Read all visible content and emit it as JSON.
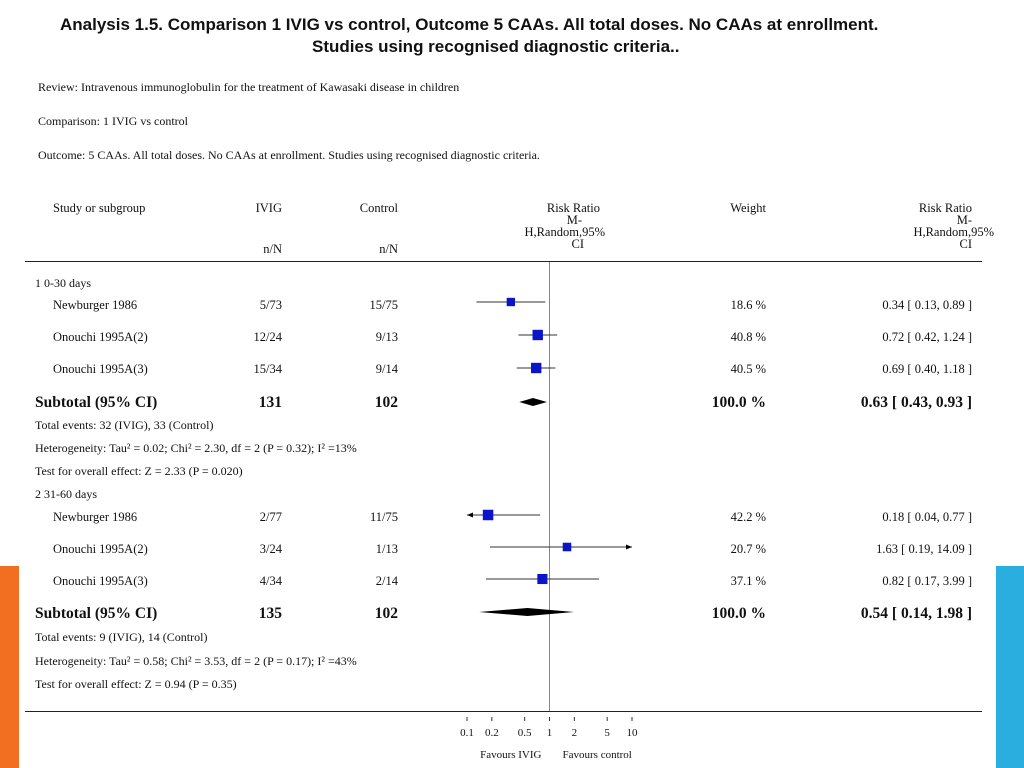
{
  "title": {
    "line1": "Analysis 1.5.   Comparison 1 IVIG vs control, Outcome 5 CAAs. All total doses. No CAAs at enrollment.",
    "line2": "Studies using recognised diagnostic criteria.."
  },
  "meta": {
    "review": "Review:   Intravenous immunoglobulin for the treatment of Kawasaki disease in children",
    "comparison": "Comparison:   1 IVIG vs control",
    "outcome": "Outcome:   5 CAAs. All total doses. No CAAs at enrollment. Studies using recognised diagnostic criteria."
  },
  "headers": {
    "study": "Study or subgroup",
    "ivig": "IVIG",
    "ivig_sub": "n/N",
    "control": "Control",
    "control_sub": "n/N",
    "rr_plot_l1": "Risk Ratio",
    "rr_plot_l2": "M-",
    "rr_plot_l3": "H,Random,95%",
    "rr_plot_l4": "CI",
    "weight": "Weight",
    "rr_l1": "Risk Ratio",
    "rr_l2": "M-",
    "rr_l3": "H,Random,95%",
    "rr_l4": "CI"
  },
  "groups": [
    {
      "label": "1 0-30 days",
      "studies": [
        {
          "name": "Newburger 1986",
          "ivig": "5/73",
          "control": "15/75",
          "weight": "18.6 %",
          "rr": "0.34 [ 0.13, 0.89 ]"
        },
        {
          "name": "Onouchi 1995A(2)",
          "ivig": "12/24",
          "control": "9/13",
          "weight": "40.8 %",
          "rr": "0.72 [ 0.42, 1.24 ]"
        },
        {
          "name": "Onouchi 1995A(3)",
          "ivig": "15/34",
          "control": "9/14",
          "weight": "40.5 %",
          "rr": "0.69 [ 0.40, 1.18 ]"
        }
      ],
      "subtotal": {
        "label": "Subtotal (95% CI)",
        "ivig": "131",
        "control": "102",
        "weight": "100.0 %",
        "rr": "0.63 [ 0.43, 0.93 ]"
      },
      "notes": [
        "Total events: 32 (IVIG), 33 (Control)",
        "Heterogeneity: Tau² = 0.02; Chi² = 2.30, df = 2 (P = 0.32); I² =13%",
        "Test for overall effect: Z = 2.33 (P = 0.020)"
      ]
    },
    {
      "label": "2 31-60 days",
      "studies": [
        {
          "name": "Newburger 1986",
          "ivig": "2/77",
          "control": "11/75",
          "weight": "42.2 %",
          "rr": "0.18 [ 0.04, 0.77 ]"
        },
        {
          "name": "Onouchi 1995A(2)",
          "ivig": "3/24",
          "control": "1/13",
          "weight": "20.7 %",
          "rr": "1.63 [ 0.19, 14.09 ]"
        },
        {
          "name": "Onouchi 1995A(3)",
          "ivig": "4/34",
          "control": "2/14",
          "weight": "37.1 %",
          "rr": "0.82 [ 0.17, 3.99 ]"
        }
      ],
      "subtotal": {
        "label": "Subtotal (95% CI)",
        "ivig": "135",
        "control": "102",
        "weight": "100.0 %",
        "rr": "0.54 [ 0.14, 1.98 ]"
      },
      "notes": [
        "Total events: 9 (IVIG), 14 (Control)",
        "Heterogeneity: Tau² = 0.58; Chi² = 3.53, df = 2 (P = 0.17); I² =43%",
        "Test for overall effect: Z = 0.94 (P = 0.35)"
      ]
    }
  ],
  "axis": {
    "ticks": [
      "0.1",
      "0.2",
      "0.5",
      "1",
      "2",
      "5",
      "10"
    ],
    "favours_left": "Favours IVIG",
    "favours_right": "Favours control"
  },
  "colors": {
    "marker": "#0a14c8",
    "accent_left": "#f26f21",
    "accent_right": "#2aaee0"
  },
  "chart_data": {
    "type": "forest",
    "scale": "log",
    "xlim": [
      0.1,
      10
    ],
    "null_line": 1,
    "ticks": [
      0.1,
      0.2,
      0.5,
      1,
      2,
      5,
      10
    ],
    "studies": [
      {
        "group": "1 0-30 days",
        "name": "Newburger 1986",
        "rr": 0.34,
        "lo": 0.13,
        "hi": 0.89,
        "weight": 18.6
      },
      {
        "group": "1 0-30 days",
        "name": "Onouchi 1995A(2)",
        "rr": 0.72,
        "lo": 0.42,
        "hi": 1.24,
        "weight": 40.8
      },
      {
        "group": "1 0-30 days",
        "name": "Onouchi 1995A(3)",
        "rr": 0.69,
        "lo": 0.4,
        "hi": 1.18,
        "weight": 40.5
      },
      {
        "group": "1 0-30 days",
        "name": "Subtotal (95% CI)",
        "rr": 0.63,
        "lo": 0.43,
        "hi": 0.93,
        "weight": 100.0,
        "subtotal": true
      },
      {
        "group": "2 31-60 days",
        "name": "Newburger 1986",
        "rr": 0.18,
        "lo": 0.04,
        "hi": 0.77,
        "weight": 42.2
      },
      {
        "group": "2 31-60 days",
        "name": "Onouchi 1995A(2)",
        "rr": 1.63,
        "lo": 0.19,
        "hi": 14.09,
        "weight": 20.7
      },
      {
        "group": "2 31-60 days",
        "name": "Onouchi 1995A(3)",
        "rr": 0.82,
        "lo": 0.17,
        "hi": 3.99,
        "weight": 37.1
      },
      {
        "group": "2 31-60 days",
        "name": "Subtotal (95% CI)",
        "rr": 0.54,
        "lo": 0.14,
        "hi": 1.98,
        "weight": 100.0,
        "subtotal": true
      }
    ]
  }
}
